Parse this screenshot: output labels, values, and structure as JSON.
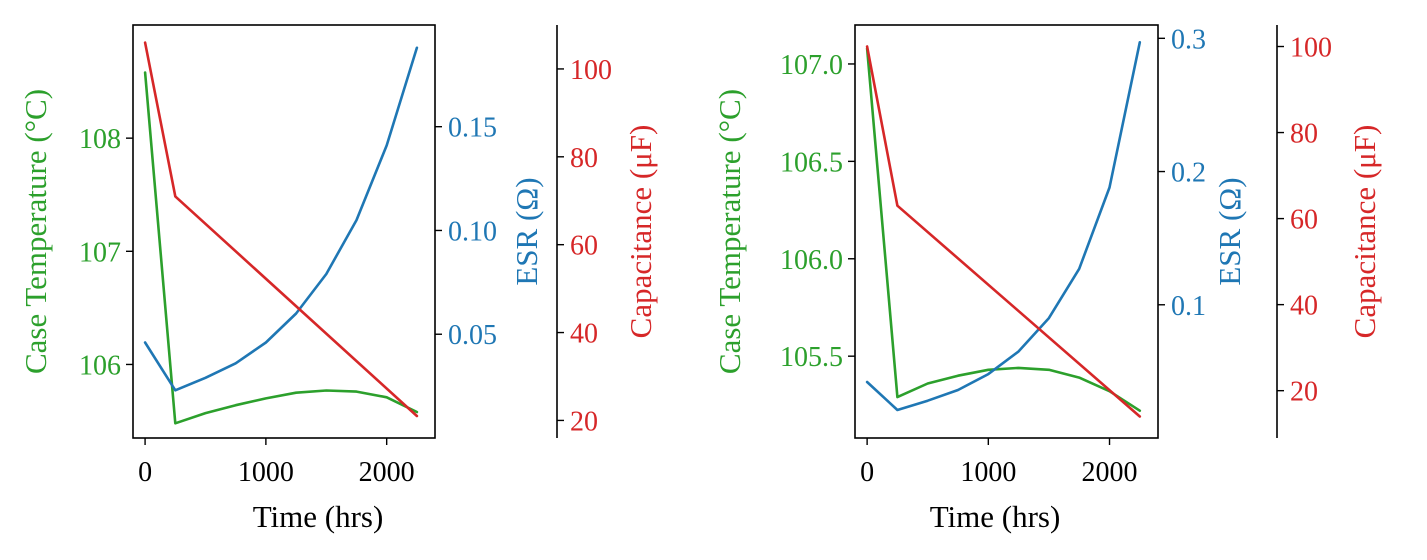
{
  "colors": {
    "temperature": "#2ca02c",
    "esr": "#1f77b4",
    "capacitance": "#d62728",
    "axis": "#000000"
  },
  "chart_data": [
    {
      "type": "line",
      "xlabel": "Time (hrs)",
      "xlim": [
        -100,
        2400
      ],
      "xticks": [
        "0",
        "1000",
        "2000"
      ],
      "axes": {
        "temperature": {
          "label": "Case Temperature (°C)",
          "ylim": [
            105.35,
            109.0
          ],
          "ticks": [
            "106",
            "107",
            "108"
          ]
        },
        "esr": {
          "label": "ESR (Ω)",
          "ylim": [
            0.0,
            0.199
          ],
          "ticks": [
            "0.05",
            "0.10",
            "0.15"
          ]
        },
        "capacitance": {
          "label": "Capacitance (μF)",
          "ylim": [
            16.0,
            110.0
          ],
          "ticks": [
            "20",
            "40",
            "60",
            "80",
            "100"
          ]
        }
      },
      "series": [
        {
          "axis": "temperature",
          "x": [
            0,
            250,
            500,
            750,
            1000,
            1250,
            1500,
            1750,
            2000,
            2250
          ],
          "y": [
            108.58,
            105.48,
            105.57,
            105.64,
            105.7,
            105.75,
            105.77,
            105.76,
            105.71,
            105.58
          ]
        },
        {
          "axis": "esr",
          "x": [
            0,
            250,
            500,
            750,
            1000,
            1250,
            1500,
            1750,
            2000,
            2250
          ],
          "y": [
            0.046,
            0.023,
            0.029,
            0.036,
            0.046,
            0.06,
            0.079,
            0.105,
            0.141,
            0.188
          ]
        },
        {
          "axis": "capacitance",
          "x": [
            0,
            250,
            2250
          ],
          "y": [
            106,
            71,
            21
          ]
        }
      ]
    },
    {
      "type": "line",
      "xlabel": "Time (hrs)",
      "xlim": [
        -100,
        2400
      ],
      "xticks": [
        "0",
        "1000",
        "2000"
      ],
      "axes": {
        "temperature": {
          "label": "Case Temperature (°C)",
          "ylim": [
            105.08,
            107.2
          ],
          "ticks": [
            "105.5",
            "106.0",
            "106.5",
            "107.0"
          ]
        },
        "esr": {
          "label": "ESR (Ω)",
          "ylim": [
            0.0,
            0.31
          ],
          "ticks": [
            "0.1",
            "0.2",
            "0.3"
          ]
        },
        "capacitance": {
          "label": "Capacitance (μF)",
          "ylim": [
            9.0,
            105.0
          ],
          "ticks": [
            "20",
            "40",
            "60",
            "80",
            "100"
          ]
        }
      },
      "series": [
        {
          "axis": "temperature",
          "x": [
            0,
            250,
            500,
            750,
            1000,
            1250,
            1500,
            1750,
            2000,
            2250
          ],
          "y": [
            107.08,
            105.29,
            105.36,
            105.4,
            105.43,
            105.44,
            105.43,
            105.39,
            105.32,
            105.22
          ]
        },
        {
          "axis": "esr",
          "x": [
            0,
            250,
            500,
            750,
            1000,
            1250,
            1500,
            1750,
            2000,
            2250
          ],
          "y": [
            0.042,
            0.021,
            0.028,
            0.036,
            0.048,
            0.065,
            0.09,
            0.127,
            0.188,
            0.297
          ]
        },
        {
          "axis": "capacitance",
          "x": [
            0,
            250,
            2250
          ],
          "y": [
            100,
            63,
            14
          ]
        }
      ]
    }
  ]
}
